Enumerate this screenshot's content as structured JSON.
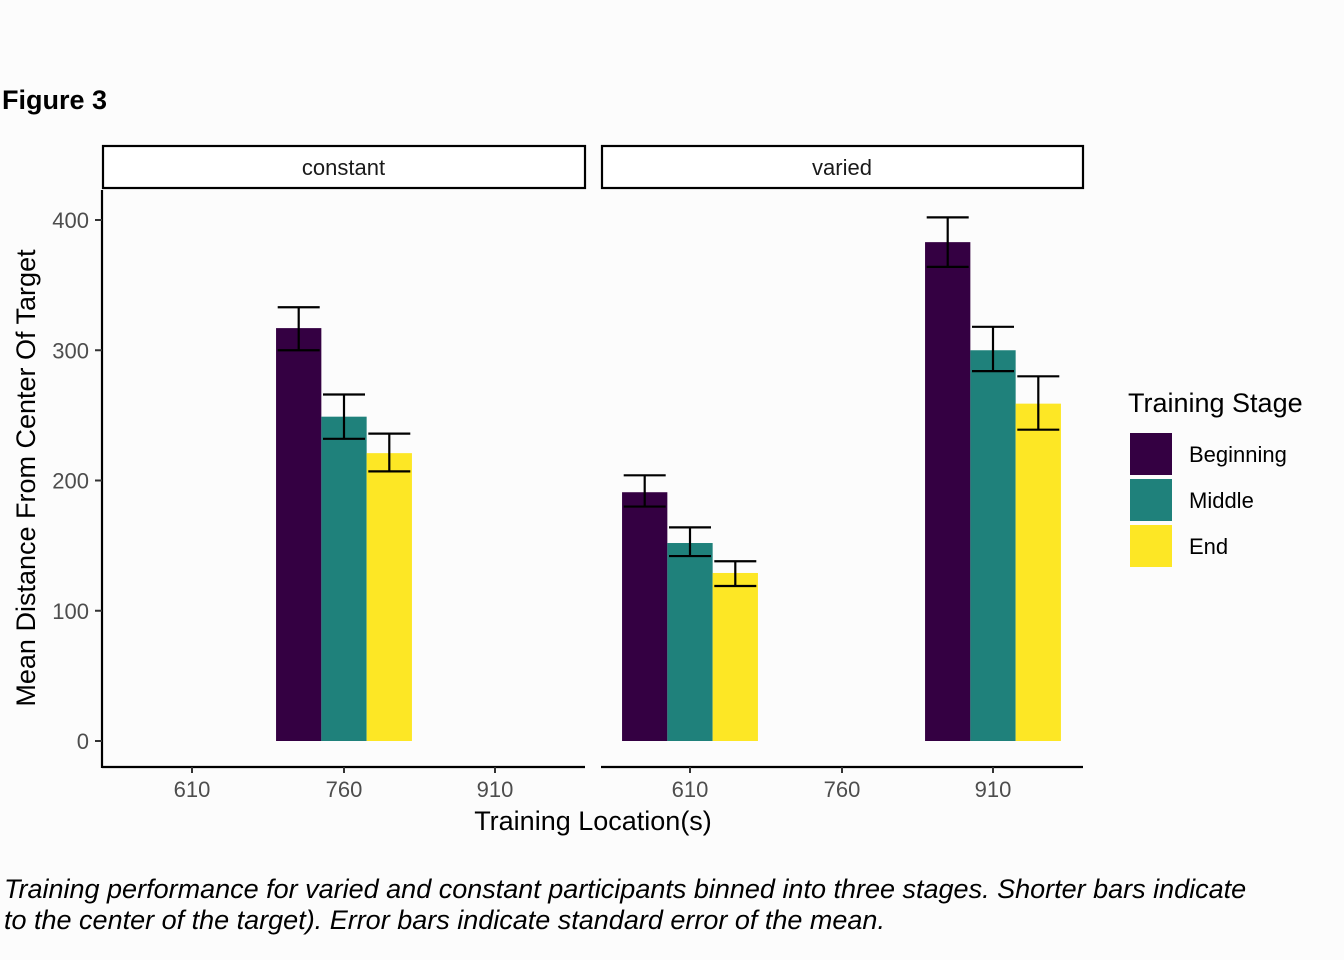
{
  "figure_label": "Figure 3",
  "caption": {
    "line1": "Training performance for varied and constant participants binned into three stages. Shorter bars indicate",
    "line2": "to the center of the target). Error bars indicate standard error of the mean."
  },
  "chart_data": {
    "type": "bar",
    "xlabel": "Training Location(s)",
    "ylabel": "Mean Distance From Center Of Target",
    "ylim": [
      0,
      420
    ],
    "yticks": [
      0,
      100,
      200,
      300,
      400
    ],
    "categories": [
      "610",
      "760",
      "910"
    ],
    "grid": false,
    "legend": {
      "title": "Training Stage",
      "placement": "right",
      "entries": [
        {
          "name": "Beginning",
          "color": "#340042"
        },
        {
          "name": "Middle",
          "color": "#1f817b"
        },
        {
          "name": "End",
          "color": "#fde725"
        }
      ]
    },
    "panels": [
      {
        "title": "constant",
        "groups": [
          {
            "x": "760",
            "values": [
              317,
              249,
              221
            ],
            "err_low": [
              300,
              232,
              207
            ],
            "err_high": [
              333,
              266,
              236
            ]
          }
        ]
      },
      {
        "title": "varied",
        "groups": [
          {
            "x": "610",
            "values": [
              191,
              152,
              129
            ],
            "err_low": [
              180,
              142,
              119
            ],
            "err_high": [
              204,
              164,
              138
            ]
          },
          {
            "x": "910",
            "values": [
              383,
              300,
              259
            ],
            "err_low": [
              364,
              284,
              239
            ],
            "err_high": [
              402,
              318,
              280
            ]
          }
        ]
      }
    ]
  }
}
